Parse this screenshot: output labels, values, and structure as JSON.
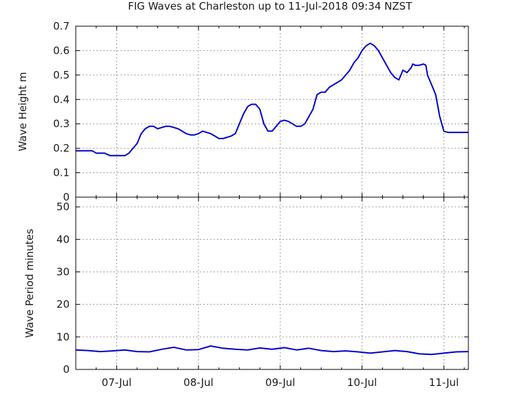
{
  "chart_data": [
    {
      "type": "line",
      "title": "FIG Waves at Charleston up to 11-Jul-2018 09:34 NZST",
      "xlabel": "",
      "ylabel": "Wave Height m",
      "ylim": [
        0,
        0.7
      ],
      "yticks": [
        "0",
        "0.1",
        "0.2",
        "0.3",
        "0.4",
        "0.5",
        "0.6",
        "0.7"
      ],
      "xlim": [
        "2018-07-06 12:00",
        "2018-07-11 09:34"
      ],
      "xticks": [
        "07-Jul",
        "08-Jul",
        "09-Jul",
        "10-Jul",
        "11-Jul"
      ],
      "grid": true,
      "color": "#0000cc",
      "series": [
        {
          "x": [
            0,
            0.1,
            0.2,
            0.25,
            0.3,
            0.35,
            0.42,
            0.5,
            0.55,
            0.6,
            0.65,
            0.7,
            0.75,
            0.8,
            0.85,
            0.9,
            0.95,
            1.0,
            1.05,
            1.1,
            1.15,
            1.2,
            1.25,
            1.3,
            1.35,
            1.4,
            1.45,
            1.5,
            1.55,
            1.6,
            1.65,
            1.7,
            1.75,
            1.8,
            1.85,
            1.9,
            1.95,
            2.0,
            2.05,
            2.1,
            2.12,
            2.15,
            2.2,
            2.25,
            2.3,
            2.35,
            2.4,
            2.45,
            2.5,
            2.55,
            2.6,
            2.65,
            2.7,
            2.75,
            2.8,
            2.85,
            2.9,
            2.95,
            3.0,
            3.05,
            3.1,
            3.15,
            3.2,
            3.25,
            3.3,
            3.35,
            3.4,
            3.45,
            3.5,
            3.55,
            3.6,
            3.65,
            3.7,
            3.75,
            3.8,
            3.85,
            3.9,
            3.95,
            4.0,
            4.05,
            4.1,
            4.12,
            4.15,
            4.2,
            4.25,
            4.28,
            4.3,
            4.35,
            4.4,
            4.45,
            4.5,
            4.55,
            4.6,
            4.65,
            4.68,
            4.7,
            4.75,
            4.8
          ],
          "y": [
            0.19,
            0.19,
            0.19,
            0.18,
            0.18,
            0.18,
            0.17,
            0.17,
            0.17,
            0.17,
            0.18,
            0.2,
            0.22,
            0.26,
            0.28,
            0.29,
            0.29,
            0.28,
            0.285,
            0.29,
            0.29,
            0.285,
            0.28,
            0.27,
            0.26,
            0.255,
            0.255,
            0.26,
            0.27,
            0.265,
            0.26,
            0.25,
            0.24,
            0.24,
            0.245,
            0.25,
            0.26,
            0.3,
            0.34,
            0.37,
            0.375,
            0.38,
            0.38,
            0.36,
            0.3,
            0.27,
            0.27,
            0.29,
            0.31,
            0.315,
            0.31,
            0.3,
            0.29,
            0.29,
            0.3,
            0.33,
            0.36,
            0.42,
            0.43,
            0.43,
            0.45,
            0.46,
            0.47,
            0.48,
            0.5,
            0.52,
            0.55,
            0.57,
            0.6,
            0.62,
            0.63,
            0.62,
            0.6,
            0.57,
            0.54,
            0.51,
            0.49,
            0.48,
            0.52,
            0.51,
            0.53,
            0.545,
            0.54,
            0.54,
            0.545,
            0.54,
            0.5,
            0.46,
            0.42,
            0.33,
            0.27,
            0.265,
            0.265,
            0.265,
            0.265,
            0.265,
            0.265,
            0.265
          ]
        }
      ]
    },
    {
      "type": "line",
      "title": "",
      "xlabel": "",
      "ylabel": "Wave Period minutes",
      "ylim": [
        0,
        53
      ],
      "yticks": [
        "0",
        "10",
        "20",
        "30",
        "40",
        "50"
      ],
      "xlim": [
        "2018-07-06 12:00",
        "2018-07-11 09:34"
      ],
      "xticks": [
        "07-Jul",
        "08-Jul",
        "09-Jul",
        "10-Jul",
        "11-Jul"
      ],
      "grid": true,
      "color": "#0000cc",
      "series": [
        {
          "x": [
            0,
            0.15,
            0.3,
            0.45,
            0.6,
            0.75,
            0.9,
            1.05,
            1.2,
            1.35,
            1.5,
            1.65,
            1.8,
            1.95,
            2.1,
            2.25,
            2.4,
            2.55,
            2.7,
            2.85,
            3.0,
            3.15,
            3.3,
            3.45,
            3.6,
            3.75,
            3.9,
            4.05,
            4.2,
            4.35,
            4.5,
            4.65,
            4.8
          ],
          "y": [
            6,
            5.8,
            5.5,
            5.7,
            6.0,
            5.5,
            5.4,
            6.2,
            6.8,
            6.0,
            6.1,
            7.2,
            6.5,
            6.2,
            6.0,
            6.6,
            6.2,
            6.7,
            6.0,
            6.5,
            5.8,
            5.5,
            5.7,
            5.4,
            5.0,
            5.4,
            5.8,
            5.5,
            4.8,
            4.6,
            5.0,
            5.4,
            5.5
          ]
        }
      ]
    }
  ]
}
